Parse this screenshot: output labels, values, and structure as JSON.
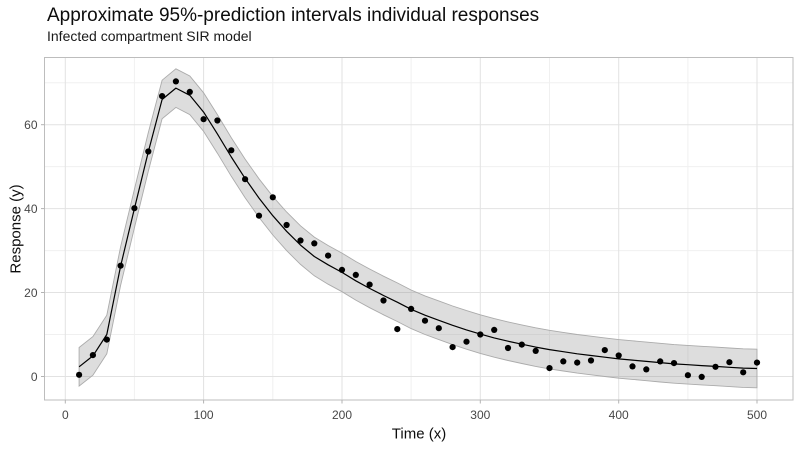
{
  "chart_data": {
    "type": "line",
    "title": "Approximate 95%-prediction intervals individual responses",
    "subtitle": "Infected compartment SIR model",
    "xlabel": "Time (x)",
    "ylabel": "Response (y)",
    "legend": "none",
    "grid": true,
    "xlim": [
      -15,
      526
    ],
    "ylim": [
      -5.6,
      76
    ],
    "x_major_ticks": [
      0,
      100,
      200,
      300,
      400,
      500
    ],
    "x_minor_ticks": [
      50,
      150,
      250,
      350,
      450
    ],
    "y_major_ticks": [
      0,
      20,
      40,
      60
    ],
    "y_minor_ticks": [
      10,
      30,
      50,
      70
    ],
    "x": [
      10,
      20,
      30,
      40,
      50,
      60,
      70,
      80,
      90,
      100,
      110,
      120,
      130,
      140,
      150,
      160,
      170,
      180,
      190,
      200,
      210,
      220,
      230,
      240,
      250,
      260,
      270,
      280,
      290,
      300,
      310,
      320,
      330,
      340,
      350,
      360,
      370,
      380,
      390,
      400,
      410,
      420,
      430,
      440,
      450,
      460,
      470,
      480,
      490,
      500
    ],
    "observed_points": [
      0.4,
      5.1,
      8.8,
      26.4,
      40.1,
      53.6,
      66.8,
      70.3,
      67.8,
      61.3,
      61.0,
      53.9,
      47.0,
      38.3,
      42.7,
      36.1,
      32.4,
      31.7,
      28.8,
      25.4,
      24.2,
      21.9,
      18.1,
      11.3,
      16.1,
      13.3,
      11.5,
      7.0,
      8.3,
      10.0,
      11.1,
      6.8,
      7.6,
      6.1,
      2.0,
      3.6,
      3.3,
      3.8,
      6.3,
      5.0,
      2.4,
      1.7,
      3.6,
      3.2,
      0.3,
      -0.1,
      2.3,
      3.4,
      1.0,
      3.3
    ],
    "mean_line": [
      2.3,
      4.9,
      10.0,
      26.3,
      40.0,
      53.5,
      66.0,
      68.7,
      67.0,
      63.0,
      57.8,
      52.3,
      47.2,
      42.5,
      38.3,
      34.6,
      31.3,
      28.6,
      26.6,
      24.8,
      22.8,
      21.0,
      19.3,
      17.7,
      16.0,
      14.6,
      13.4,
      12.2,
      11.1,
      10.1,
      9.2,
      8.4,
      7.7,
      7.0,
      6.4,
      5.9,
      5.4,
      5.0,
      4.6,
      4.2,
      3.9,
      3.6,
      3.3,
      3.0,
      2.8,
      2.6,
      2.4,
      2.2,
      2.0,
      1.9
    ],
    "ribbon_upper": [
      6.9,
      9.5,
      14.6,
      30.9,
      44.6,
      58.1,
      70.6,
      73.3,
      71.6,
      67.6,
      62.4,
      56.9,
      51.8,
      47.1,
      42.9,
      39.2,
      35.9,
      33.2,
      31.2,
      29.4,
      27.4,
      25.6,
      23.9,
      22.3,
      20.6,
      19.2,
      18.0,
      16.8,
      15.7,
      14.7,
      13.8,
      13.0,
      12.3,
      11.6,
      11.0,
      10.5,
      10.0,
      9.6,
      9.2,
      8.8,
      8.5,
      8.2,
      7.9,
      7.6,
      7.4,
      7.2,
      7.0,
      6.8,
      6.6,
      6.5
    ],
    "ribbon_lower": [
      -2.3,
      0.3,
      5.4,
      21.7,
      35.4,
      48.9,
      61.4,
      64.1,
      62.4,
      58.4,
      53.2,
      47.7,
      42.6,
      37.9,
      33.7,
      30.0,
      26.7,
      24.0,
      22.0,
      20.2,
      18.2,
      16.4,
      14.7,
      13.1,
      11.4,
      10.0,
      8.8,
      7.6,
      6.5,
      5.5,
      4.6,
      3.8,
      3.1,
      2.4,
      1.8,
      1.3,
      0.8,
      0.4,
      0.0,
      -0.4,
      -0.7,
      -1.0,
      -1.3,
      -1.6,
      -1.8,
      -2.0,
      -2.2,
      -2.4,
      -2.6,
      -2.7
    ],
    "colors": {
      "point": "#000000",
      "mean_line": "#000000",
      "ribbon_fill": "#808080",
      "ribbon_fill_opacity": 0.27,
      "ribbon_edge": "#ababab",
      "grid_major": "#e2e2e2",
      "grid_minor": "#f0f0f0",
      "panel_border": "#bdbdbd",
      "tick_mark": "#b3b3b3",
      "axis_text": "#474747",
      "title_text": "#0d0d0d",
      "background": "#ffffff"
    }
  }
}
